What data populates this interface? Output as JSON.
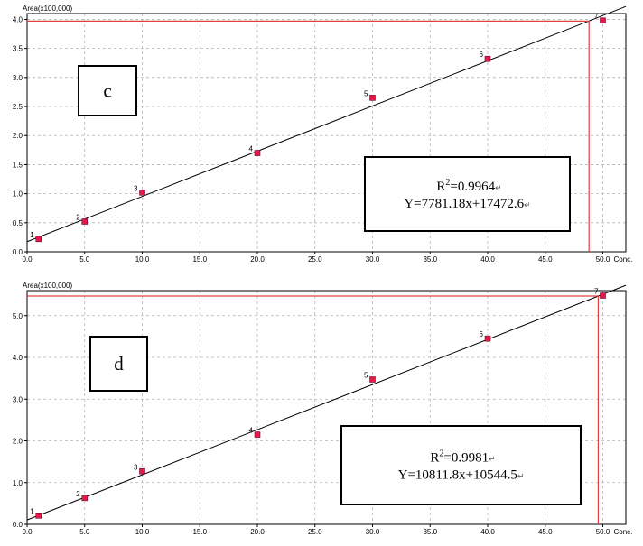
{
  "chart_data": [
    {
      "type": "scatter",
      "panel_label": "c",
      "ylabel": "Area(x100,000)",
      "xlabel": "Conc.",
      "xlim": [
        0,
        52
      ],
      "ylim": [
        0,
        4.1
      ],
      "xticks": [
        "0.0",
        "5.0",
        "10.0",
        "15.0",
        "20.0",
        "25.0",
        "30.0",
        "35.0",
        "40.0",
        "45.0",
        "50.0"
      ],
      "yticks": [
        "0.0",
        "0.5",
        "1.0",
        "1.5",
        "2.0",
        "2.5",
        "3.0",
        "3.5",
        "4.0"
      ],
      "grid": true,
      "points": [
        {
          "label": "1",
          "x": 1,
          "y": 0.22
        },
        {
          "label": "2",
          "x": 5,
          "y": 0.52
        },
        {
          "label": "3",
          "x": 10,
          "y": 1.02
        },
        {
          "label": "4",
          "x": 20,
          "y": 1.7
        },
        {
          "label": "5",
          "x": 30,
          "y": 2.65
        },
        {
          "label": "6",
          "x": 40,
          "y": 3.32
        },
        {
          "label": "7",
          "x": 50,
          "y": 3.98
        }
      ],
      "fit": {
        "slope": 0.077812,
        "intercept": 0.174726,
        "x_range": [
          0,
          52
        ]
      },
      "reference": {
        "x": 48.8,
        "y": 3.97
      },
      "r2_prefix": "R",
      "r2_sup": "2",
      "r2_value": "=0.9964",
      "equation": "Y=7781.18x+17472.6",
      "mark_symbol": "↵",
      "colors": {
        "marker": "#e8174a",
        "marker_edge": "#6a1030",
        "fit": "#000000",
        "reference": "#e04040"
      }
    },
    {
      "type": "scatter",
      "panel_label": "d",
      "ylabel": "Area(x100,000)",
      "xlabel": "Conc.",
      "xlim": [
        0,
        52
      ],
      "ylim": [
        0,
        5.6
      ],
      "xticks": [
        "0.0",
        "5.0",
        "10.0",
        "15.0",
        "20.0",
        "25.0",
        "30.0",
        "35.0",
        "40.0",
        "45.0",
        "50.0"
      ],
      "yticks": [
        "0.0",
        "1.0",
        "2.0",
        "3.0",
        "4.0",
        "5.0"
      ],
      "grid": true,
      "points": [
        {
          "label": "1",
          "x": 1,
          "y": 0.21
        },
        {
          "label": "2",
          "x": 5,
          "y": 0.63
        },
        {
          "label": "3",
          "x": 10,
          "y": 1.27
        },
        {
          "label": "4",
          "x": 20,
          "y": 2.15
        },
        {
          "label": "5",
          "x": 30,
          "y": 3.47
        },
        {
          "label": "6",
          "x": 40,
          "y": 4.45
        },
        {
          "label": "7",
          "x": 50,
          "y": 5.48
        }
      ],
      "fit": {
        "slope": 0.108118,
        "intercept": 0.105445,
        "x_range": [
          0,
          52
        ]
      },
      "reference": {
        "x": 49.6,
        "y": 5.47
      },
      "r2_prefix": "R",
      "r2_sup": "2",
      "r2_value": "=0.9981",
      "equation": "Y=10811.8x+10544.5",
      "mark_symbol": "↵",
      "colors": {
        "marker": "#e8174a",
        "marker_edge": "#6a1030",
        "fit": "#000000",
        "reference": "#e04040"
      }
    }
  ]
}
